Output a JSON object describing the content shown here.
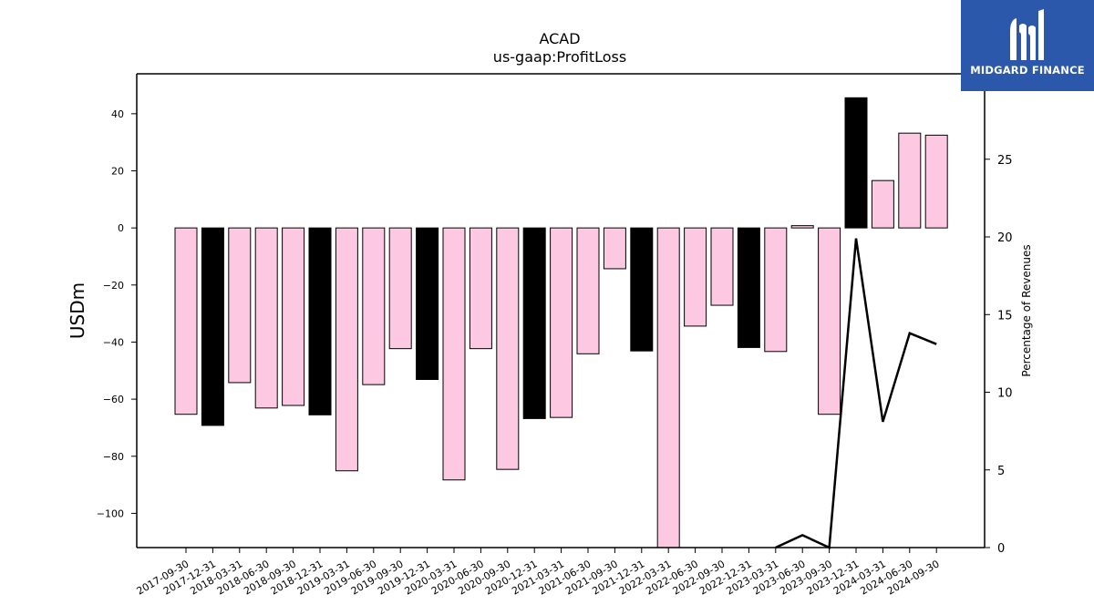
{
  "brand": {
    "name": "MIDGARD FINANCE",
    "logo_icon": "midgard-m-icon",
    "background": "#2b58ab"
  },
  "chart_data": {
    "type": "bar",
    "title": "ACAD",
    "subtitle": "us-gaap:ProfitLoss",
    "ylabel": "USDm",
    "ylabel_right": "Percentage of Revenues",
    "ylim": [
      -112,
      54
    ],
    "ylim_right": [
      0,
      30.5
    ],
    "yticks": [
      40,
      20,
      0,
      -20,
      -40,
      -60,
      -80,
      -100
    ],
    "yticks_right": [
      0,
      5,
      10,
      15,
      20,
      25
    ],
    "categories": [
      "2017-09-30",
      "2017-12-31",
      "2018-03-31",
      "2018-06-30",
      "2018-09-30",
      "2018-12-31",
      "2019-03-31",
      "2019-06-30",
      "2019-09-30",
      "2019-12-31",
      "2020-03-31",
      "2020-06-30",
      "2020-09-30",
      "2020-12-31",
      "2021-03-31",
      "2021-06-30",
      "2021-09-30",
      "2021-12-31",
      "2022-03-31",
      "2022-06-30",
      "2022-09-30",
      "2022-12-31",
      "2023-03-31",
      "2023-06-30",
      "2023-09-30",
      "2023-12-31",
      "2024-03-31",
      "2024-06-30",
      "2024-09-30"
    ],
    "values": [
      -65.3,
      -69.2,
      -54.2,
      -63.1,
      -62.2,
      -65.5,
      -85.1,
      -54.9,
      -42.3,
      -53.1,
      -88.3,
      -42.3,
      -84.6,
      -66.8,
      -66.4,
      -44.1,
      -14.3,
      -43.1,
      -112,
      -34.4,
      -27.1,
      -41.9,
      -43.3,
      0.8,
      -65.3,
      45.6,
      16.6,
      33.2,
      32.5
    ],
    "highlight_quarter": "Q4",
    "colors": {
      "bar": "#fcc8e2",
      "bar_q4": "#000000",
      "edge": "#000000",
      "line": "#000000"
    },
    "line_series": {
      "name": "",
      "x": [
        "2023-03-31",
        "2023-06-30",
        "2023-09-30",
        "2023-12-31",
        "2024-03-31",
        "2024-06-30",
        "2024-09-30"
      ],
      "values": [
        0,
        0.8,
        0,
        19.9,
        8.1,
        13.8,
        13.1
      ]
    },
    "grid": false,
    "legend": "none"
  }
}
